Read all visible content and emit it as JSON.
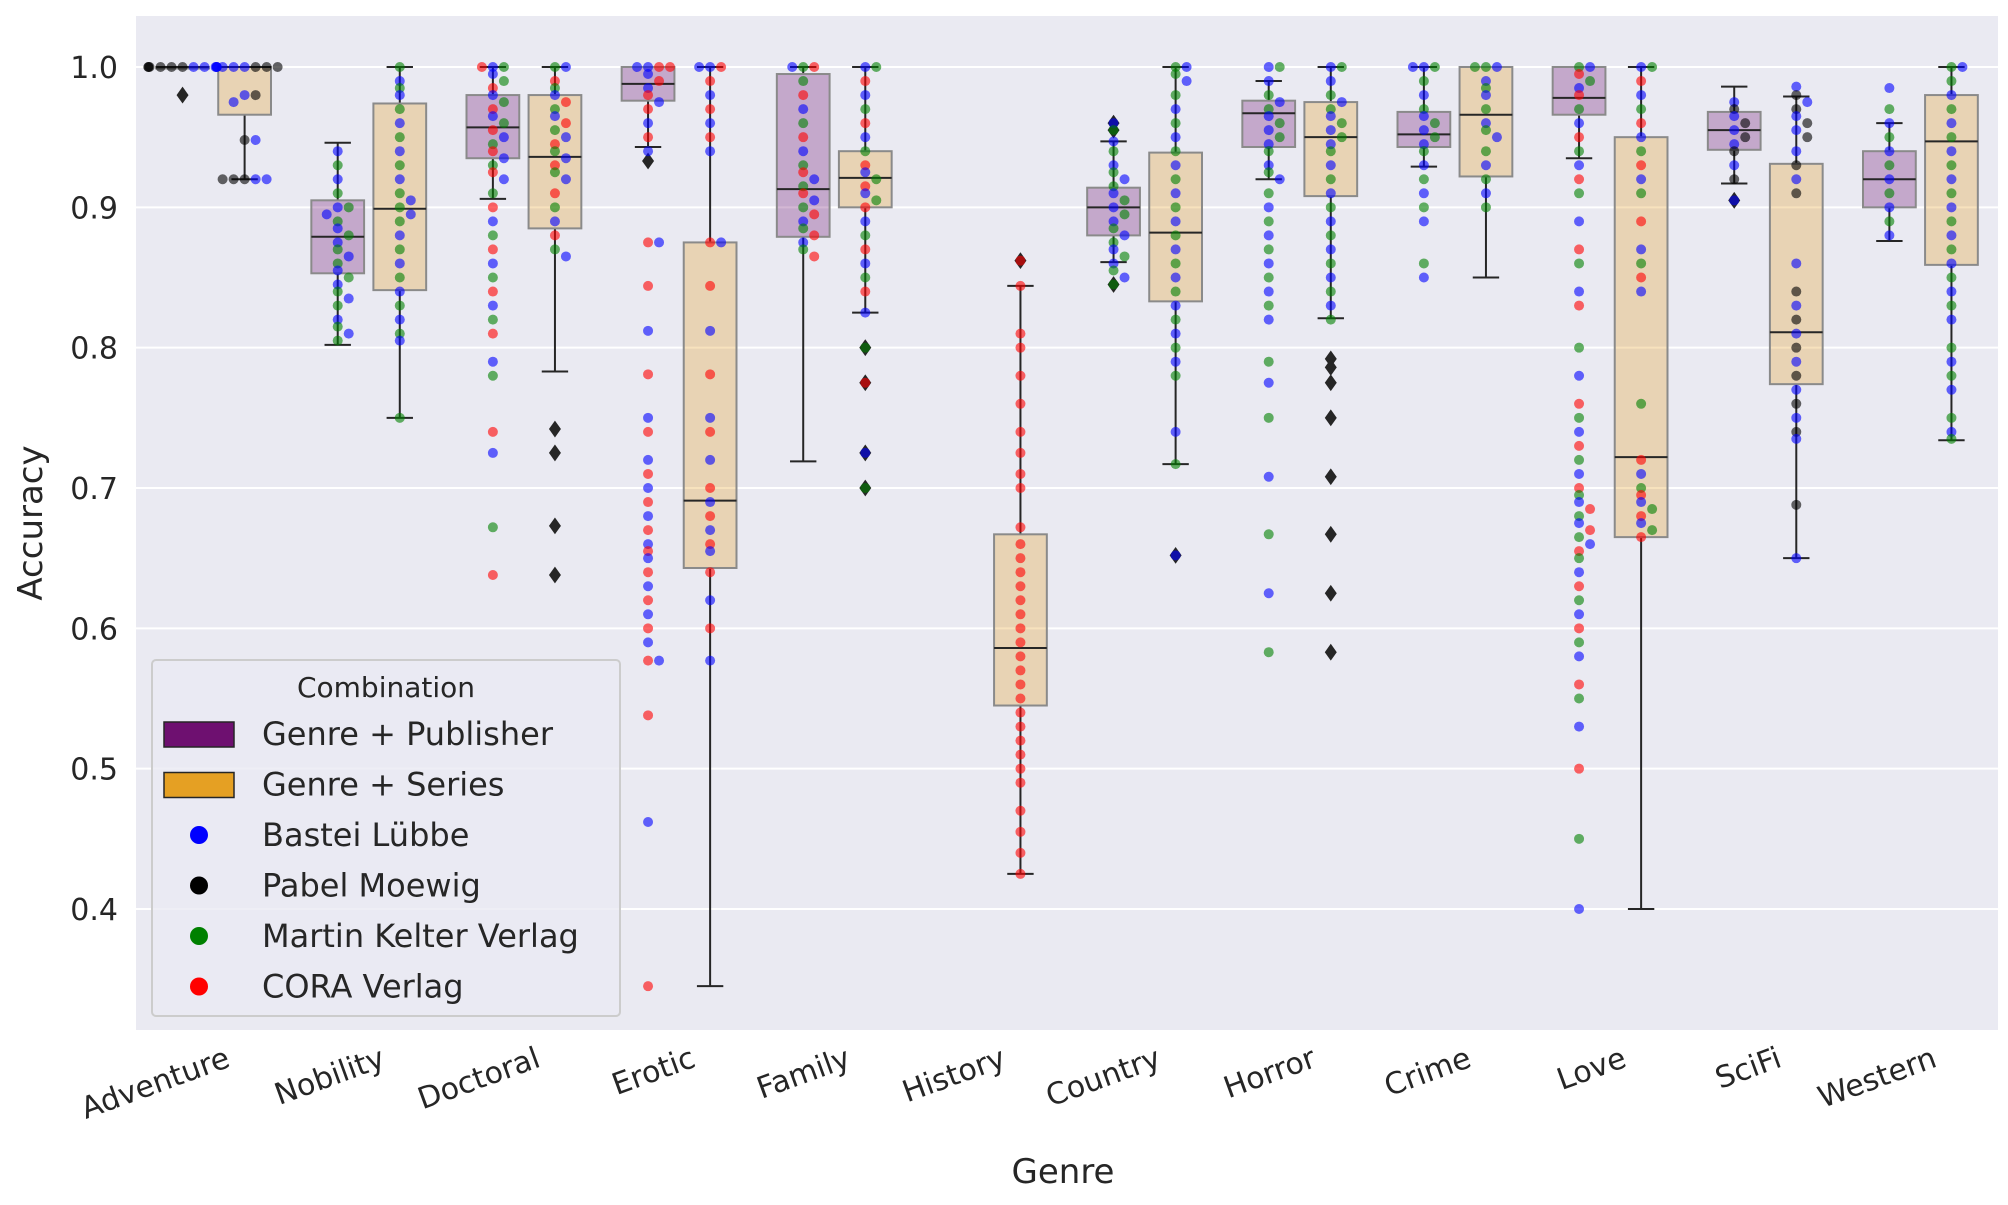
{
  "chart_data": {
    "type": "box",
    "xlabel": "Genre",
    "ylabel": "Accuracy",
    "ylim": [
      0.31,
      1.04
    ],
    "yticks": [
      "0.4",
      "0.5",
      "0.6",
      "0.7",
      "0.8",
      "0.9",
      "1.0"
    ],
    "grid": true,
    "legend": {
      "title": "Combination",
      "position": "lower-left",
      "entries": [
        "Genre + Publisher",
        "Genre + Series",
        "Bastei Lübbe",
        "Pabel Moewig",
        "Martin Kelter Verlag",
        "CORA Verlag"
      ]
    },
    "colors": {
      "Genre + Publisher": "#6e1070",
      "Genre + Series": "#e5a023",
      "Bastei Lübbe": "#0000ff",
      "Pabel Moewig": "#000000",
      "Martin Kelter Verlag": "#008000",
      "CORA Verlag": "#ff0000",
      "background": "#eaeaf2"
    },
    "categories": [
      "Adventure",
      "Nobility",
      "Doctoral",
      "Erotic",
      "Family",
      "History",
      "Country",
      "Horror",
      "Crime",
      "Love",
      "SciFi",
      "Western"
    ],
    "boxes": {
      "Genre + Publisher": [
        {
          "q1": 1.0,
          "median": 1.0,
          "q3": 1.0,
          "whislo": 1.0,
          "whishi": 1.0,
          "fliers": [
            0.98
          ]
        },
        {
          "q1": 0.853,
          "median": 0.879,
          "q3": 0.905,
          "whislo": 0.802,
          "whishi": 0.946,
          "fliers": []
        },
        {
          "q1": 0.935,
          "median": 0.957,
          "q3": 0.98,
          "whislo": 0.906,
          "whishi": 1.0,
          "fliers": []
        },
        {
          "q1": 0.976,
          "median": 0.988,
          "q3": 1.0,
          "whislo": 0.943,
          "whishi": 1.0,
          "fliers": [
            0.933
          ]
        },
        {
          "q1": 0.879,
          "median": 0.913,
          "q3": 0.995,
          "whislo": 0.719,
          "whishi": 1.0,
          "fliers": []
        },
        null,
        {
          "q1": 0.88,
          "median": 0.9,
          "q3": 0.914,
          "whislo": 0.861,
          "whishi": 0.947,
          "fliers": [
            0.845,
            0.955,
            0.96
          ]
        },
        {
          "q1": 0.943,
          "median": 0.967,
          "q3": 0.976,
          "whislo": 0.92,
          "whishi": 0.99,
          "fliers": []
        },
        {
          "q1": 0.943,
          "median": 0.952,
          "q3": 0.968,
          "whislo": 0.929,
          "whishi": 1.0,
          "fliers": []
        },
        {
          "q1": 0.966,
          "median": 0.978,
          "q3": 1.0,
          "whislo": 0.935,
          "whishi": 1.0,
          "fliers": []
        },
        {
          "q1": 0.941,
          "median": 0.955,
          "q3": 0.968,
          "whislo": 0.917,
          "whishi": 0.986,
          "fliers": [
            0.905
          ]
        },
        {
          "q1": 0.9,
          "median": 0.92,
          "q3": 0.94,
          "whislo": 0.876,
          "whishi": 0.96,
          "fliers": []
        }
      ],
      "Genre + Series": [
        {
          "q1": 0.966,
          "median": 1.0,
          "q3": 1.0,
          "whislo": 0.92,
          "whishi": 1.0,
          "fliers": []
        },
        {
          "q1": 0.841,
          "median": 0.899,
          "q3": 0.974,
          "whislo": 0.75,
          "whishi": 1.0,
          "fliers": []
        },
        {
          "q1": 0.885,
          "median": 0.936,
          "q3": 0.98,
          "whislo": 0.783,
          "whishi": 1.0,
          "fliers": [
            0.742,
            0.725,
            0.673,
            0.638
          ]
        },
        {
          "q1": 0.643,
          "median": 0.691,
          "q3": 0.875,
          "whislo": 0.345,
          "whishi": 1.0,
          "fliers": []
        },
        {
          "q1": 0.9,
          "median": 0.921,
          "q3": 0.94,
          "whislo": 0.825,
          "whishi": 1.0,
          "fliers": [
            0.8,
            0.775,
            0.725,
            0.7
          ]
        },
        {
          "q1": 0.545,
          "median": 0.586,
          "q3": 0.667,
          "whislo": 0.425,
          "whishi": 0.844,
          "fliers": [
            0.862
          ]
        },
        {
          "q1": 0.833,
          "median": 0.882,
          "q3": 0.939,
          "whislo": 0.717,
          "whishi": 1.0,
          "fliers": [
            0.652
          ]
        },
        {
          "q1": 0.908,
          "median": 0.95,
          "q3": 0.975,
          "whislo": 0.821,
          "whishi": 1.0,
          "fliers": [
            0.792,
            0.786,
            0.775,
            0.75,
            0.708,
            0.667,
            0.625,
            0.583
          ]
        },
        {
          "q1": 0.922,
          "median": 0.966,
          "q3": 1.0,
          "whislo": 0.85,
          "whishi": 1.0,
          "fliers": []
        },
        {
          "q1": 0.665,
          "median": 0.722,
          "q3": 0.95,
          "whislo": 0.4,
          "whishi": 1.0,
          "fliers": []
        },
        {
          "q1": 0.774,
          "median": 0.811,
          "q3": 0.931,
          "whislo": 0.65,
          "whishi": 0.979,
          "fliers": []
        },
        {
          "q1": 0.859,
          "median": 0.947,
          "q3": 0.98,
          "whislo": 0.734,
          "whishi": 1.0,
          "fliers": []
        }
      ]
    },
    "points": [
      {
        "genre": "Adventure",
        "combination": "Genre + Publisher",
        "publishers": [
          "Pabel Moewig",
          "Bastei Lübbe"
        ],
        "values": [
          1.0,
          1.0,
          1.0,
          1.0,
          1.0,
          1.0,
          1.0,
          1.0,
          1.0,
          1.0,
          1.0,
          1.0
        ]
      },
      {
        "genre": "Adventure",
        "combination": "Genre + Series",
        "publishers": [
          "Bastei Lübbe",
          "Pabel Moewig"
        ],
        "values": [
          1.0,
          1.0,
          1.0,
          1.0,
          1.0,
          1.0,
          0.98,
          0.98,
          0.975,
          0.948,
          0.948,
          0.92,
          0.92,
          0.92,
          0.92,
          0.92
        ]
      },
      {
        "genre": "Nobility",
        "combination": "Genre + Publisher",
        "publishers": [
          "Bastei Lübbe",
          "Martin Kelter Verlag"
        ],
        "values": [
          0.92,
          0.91,
          0.9,
          0.9,
          0.895,
          0.89,
          0.885,
          0.88,
          0.875,
          0.87,
          0.865,
          0.86,
          0.855,
          0.85,
          0.845,
          0.84,
          0.835,
          0.83,
          0.82,
          0.815,
          0.81,
          0.805,
          0.94,
          0.93
        ]
      },
      {
        "genre": "Nobility",
        "combination": "Genre + Series",
        "publishers": [
          "Martin Kelter Verlag",
          "Bastei Lübbe"
        ],
        "values": [
          1.0,
          0.99,
          0.985,
          0.98,
          0.97,
          0.96,
          0.95,
          0.94,
          0.93,
          0.92,
          0.91,
          0.905,
          0.9,
          0.895,
          0.89,
          0.88,
          0.87,
          0.86,
          0.85,
          0.84,
          0.83,
          0.82,
          0.81,
          0.805,
          0.75
        ]
      },
      {
        "genre": "Doctoral",
        "combination": "Genre + Publisher",
        "publishers": [
          "Bastei Lübbe",
          "Martin Kelter Verlag",
          "CORA Verlag"
        ],
        "values": [
          1.0,
          1.0,
          1.0,
          0.995,
          0.99,
          0.985,
          0.98,
          0.975,
          0.97,
          0.965,
          0.96,
          0.955,
          0.95,
          0.945,
          0.94,
          0.935,
          0.93,
          0.925,
          0.92,
          0.91,
          0.9,
          0.89,
          0.88,
          0.87,
          0.86,
          0.85,
          0.84,
          0.83,
          0.82,
          0.81,
          0.79,
          0.78,
          0.74,
          0.725,
          0.672,
          0.638
        ]
      },
      {
        "genre": "Doctoral",
        "combination": "Genre + Series",
        "publishers": [
          "Martin Kelter Verlag",
          "Bastei Lübbe",
          "CORA Verlag"
        ],
        "values": [
          1.0,
          1.0,
          0.99,
          0.985,
          0.98,
          0.975,
          0.97,
          0.965,
          0.96,
          0.955,
          0.95,
          0.945,
          0.94,
          0.935,
          0.93,
          0.925,
          0.92,
          0.91,
          0.9,
          0.89,
          0.88,
          0.87,
          0.865
        ]
      },
      {
        "genre": "Erotic",
        "combination": "Genre + Publisher",
        "publishers": [
          "Bastei Lübbe",
          "CORA Verlag"
        ],
        "values": [
          1.0,
          1.0,
          1.0,
          1.0,
          0.995,
          0.99,
          0.985,
          0.98,
          0.975,
          0.97,
          0.96,
          0.95,
          0.94,
          0.875,
          0.875,
          0.844,
          0.812,
          0.781,
          0.75,
          0.74,
          0.72,
          0.71,
          0.7,
          0.69,
          0.68,
          0.67,
          0.66,
          0.655,
          0.65,
          0.64,
          0.63,
          0.62,
          0.61,
          0.6,
          0.59,
          0.577,
          0.577,
          0.538,
          0.462,
          0.345
        ]
      },
      {
        "genre": "Erotic",
        "combination": "Genre + Series",
        "publishers": [
          "Bastei Lübbe",
          "CORA Verlag"
        ],
        "values": [
          1.0,
          1.0,
          1.0,
          0.99,
          0.98,
          0.97,
          0.96,
          0.95,
          0.94,
          0.875,
          0.875,
          0.844,
          0.812,
          0.781,
          0.75,
          0.74,
          0.72,
          0.7,
          0.69,
          0.68,
          0.67,
          0.66,
          0.655,
          0.64,
          0.62,
          0.6,
          0.577
        ]
      },
      {
        "genre": "Family",
        "combination": "Genre + Publisher",
        "publishers": [
          "Martin Kelter Verlag",
          "CORA Verlag",
          "Bastei Lübbe"
        ],
        "values": [
          1.0,
          1.0,
          1.0,
          0.99,
          0.98,
          0.97,
          0.96,
          0.95,
          0.94,
          0.93,
          0.925,
          0.92,
          0.915,
          0.91,
          0.905,
          0.9,
          0.895,
          0.89,
          0.885,
          0.88,
          0.875,
          0.87,
          0.865
        ]
      },
      {
        "genre": "Family",
        "combination": "Genre + Series",
        "publishers": [
          "Bastei Lübbe",
          "Martin Kelter Verlag",
          "CORA Verlag"
        ],
        "values": [
          1.0,
          1.0,
          0.99,
          0.98,
          0.97,
          0.96,
          0.95,
          0.94,
          0.93,
          0.925,
          0.92,
          0.915,
          0.91,
          0.905,
          0.9,
          0.89,
          0.88,
          0.87,
          0.86,
          0.85,
          0.84,
          0.825,
          0.8,
          0.775,
          0.725,
          0.7
        ]
      },
      {
        "genre": "History",
        "combination": "Genre + Series",
        "publishers": [
          "CORA Verlag"
        ],
        "values": [
          0.862,
          0.844,
          0.81,
          0.8,
          0.78,
          0.76,
          0.74,
          0.725,
          0.71,
          0.7,
          0.672,
          0.66,
          0.65,
          0.64,
          0.63,
          0.62,
          0.61,
          0.6,
          0.59,
          0.58,
          0.57,
          0.56,
          0.55,
          0.54,
          0.53,
          0.52,
          0.51,
          0.5,
          0.49,
          0.47,
          0.455,
          0.44,
          0.425
        ]
      },
      {
        "genre": "Country",
        "combination": "Genre + Publisher",
        "publishers": [
          "Bastei Lübbe",
          "Martin Kelter Verlag"
        ],
        "values": [
          0.96,
          0.955,
          0.947,
          0.94,
          0.93,
          0.925,
          0.92,
          0.915,
          0.91,
          0.905,
          0.9,
          0.895,
          0.89,
          0.885,
          0.88,
          0.875,
          0.87,
          0.865,
          0.86,
          0.855,
          0.85,
          0.845
        ]
      },
      {
        "genre": "Country",
        "combination": "Genre + Series",
        "publishers": [
          "Martin Kelter Verlag",
          "Bastei Lübbe"
        ],
        "values": [
          1.0,
          1.0,
          0.995,
          0.99,
          0.98,
          0.97,
          0.96,
          0.95,
          0.94,
          0.93,
          0.92,
          0.91,
          0.9,
          0.89,
          0.88,
          0.87,
          0.86,
          0.85,
          0.84,
          0.83,
          0.82,
          0.81,
          0.8,
          0.79,
          0.78,
          0.74,
          0.717,
          0.652
        ]
      },
      {
        "genre": "Horror",
        "combination": "Genre + Publisher",
        "publishers": [
          "Bastei Lübbe",
          "Martin Kelter Verlag"
        ],
        "values": [
          1.0,
          1.0,
          0.99,
          0.98,
          0.975,
          0.97,
          0.965,
          0.96,
          0.955,
          0.95,
          0.945,
          0.94,
          0.93,
          0.925,
          0.92,
          0.91,
          0.9,
          0.89,
          0.88,
          0.87,
          0.86,
          0.85,
          0.84,
          0.83,
          0.82,
          0.79,
          0.775,
          0.75,
          0.708,
          0.667,
          0.625,
          0.583
        ]
      },
      {
        "genre": "Horror",
        "combination": "Genre + Series",
        "publishers": [
          "Bastei Lübbe",
          "Martin Kelter Verlag"
        ],
        "values": [
          1.0,
          1.0,
          0.99,
          0.98,
          0.975,
          0.97,
          0.965,
          0.96,
          0.955,
          0.95,
          0.945,
          0.94,
          0.93,
          0.92,
          0.91,
          0.9,
          0.89,
          0.88,
          0.87,
          0.86,
          0.85,
          0.84,
          0.83,
          0.82
        ]
      },
      {
        "genre": "Crime",
        "combination": "Genre + Publisher",
        "publishers": [
          "Bastei Lübbe",
          "Martin Kelter Verlag"
        ],
        "values": [
          1.0,
          1.0,
          1.0,
          0.99,
          0.98,
          0.97,
          0.965,
          0.96,
          0.955,
          0.95,
          0.945,
          0.94,
          0.93,
          0.92,
          0.91,
          0.9,
          0.89,
          0.86,
          0.85
        ]
      },
      {
        "genre": "Crime",
        "combination": "Genre + Series",
        "publishers": [
          "Martin Kelter Verlag",
          "Bastei Lübbe"
        ],
        "values": [
          1.0,
          1.0,
          1.0,
          0.99,
          0.985,
          0.98,
          0.97,
          0.96,
          0.955,
          0.95,
          0.94,
          0.93,
          0.92,
          0.91,
          0.9
        ]
      },
      {
        "genre": "Love",
        "combination": "Genre + Publisher",
        "publishers": [
          "Martin Kelter Verlag",
          "Bastei Lübbe",
          "CORA Verlag"
        ],
        "values": [
          1.0,
          1.0,
          0.995,
          0.99,
          0.985,
          0.98,
          0.97,
          0.96,
          0.95,
          0.94,
          0.93,
          0.92,
          0.91,
          0.89,
          0.87,
          0.86,
          0.84,
          0.83,
          0.8,
          0.78,
          0.76,
          0.75,
          0.74,
          0.73,
          0.72,
          0.71,
          0.7,
          0.695,
          0.69,
          0.685,
          0.68,
          0.675,
          0.67,
          0.665,
          0.66,
          0.655,
          0.65,
          0.64,
          0.63,
          0.62,
          0.61,
          0.6,
          0.59,
          0.58,
          0.56,
          0.55,
          0.53,
          0.5,
          0.45,
          0.4
        ]
      },
      {
        "genre": "Love",
        "combination": "Genre + Series",
        "publishers": [
          "Bastei Lübbe",
          "Martin Kelter Verlag",
          "CORA Verlag"
        ],
        "values": [
          1.0,
          1.0,
          0.99,
          0.98,
          0.97,
          0.96,
          0.95,
          0.94,
          0.93,
          0.92,
          0.91,
          0.89,
          0.87,
          0.86,
          0.85,
          0.84,
          0.76,
          0.72,
          0.71,
          0.7,
          0.695,
          0.69,
          0.685,
          0.68,
          0.675,
          0.67,
          0.665
        ]
      },
      {
        "genre": "SciFi",
        "combination": "Genre + Publisher",
        "publishers": [
          "Bastei Lübbe",
          "Pabel Moewig"
        ],
        "values": [
          0.975,
          0.97,
          0.965,
          0.96,
          0.955,
          0.95,
          0.945,
          0.94,
          0.93,
          0.92,
          0.905
        ]
      },
      {
        "genre": "SciFi",
        "combination": "Genre + Series",
        "publishers": [
          "Bastei Lübbe",
          "Pabel Moewig"
        ],
        "values": [
          0.986,
          0.98,
          0.975,
          0.97,
          0.965,
          0.96,
          0.955,
          0.95,
          0.94,
          0.93,
          0.92,
          0.91,
          0.86,
          0.84,
          0.83,
          0.82,
          0.81,
          0.8,
          0.79,
          0.78,
          0.77,
          0.76,
          0.75,
          0.74,
          0.735,
          0.688,
          0.65
        ]
      },
      {
        "genre": "Western",
        "combination": "Genre + Publisher",
        "publishers": [
          "Bastei Lübbe",
          "Martin Kelter Verlag"
        ],
        "values": [
          0.985,
          0.97,
          0.96,
          0.95,
          0.94,
          0.93,
          0.92,
          0.91,
          0.9,
          0.89,
          0.88
        ]
      },
      {
        "genre": "Western",
        "combination": "Genre + Series",
        "publishers": [
          "Martin Kelter Verlag",
          "Bastei Lübbe"
        ],
        "values": [
          1.0,
          1.0,
          0.99,
          0.98,
          0.97,
          0.96,
          0.95,
          0.94,
          0.93,
          0.92,
          0.91,
          0.9,
          0.89,
          0.88,
          0.87,
          0.86,
          0.85,
          0.84,
          0.83,
          0.82,
          0.8,
          0.79,
          0.78,
          0.77,
          0.75,
          0.74,
          0.735
        ]
      }
    ]
  }
}
